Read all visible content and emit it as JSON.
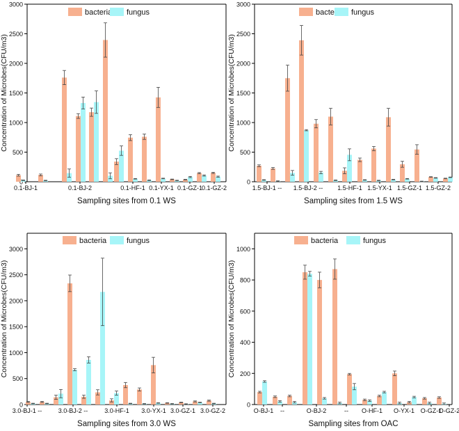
{
  "colors": {
    "bacteria": "#F7B08F",
    "fungus": "#A7F5F8",
    "error_bar": "#444444",
    "axis": "#000000"
  },
  "chart_data": [
    {
      "type": "bar",
      "ylabel": "Concentration of Microbes(CFU/m3)",
      "xlabel": "Sampling sites from 0.1 WS",
      "ylim": [
        0,
        3000
      ],
      "yticks": [
        "0",
        "500",
        "1000",
        "1500",
        "2000",
        "2500",
        "3000"
      ],
      "legend": {
        "position": "top",
        "entries": [
          "bacteria",
          "fungus"
        ]
      },
      "xticklabels": [
        "0.1-BJ-1",
        "0.1-BJ-2",
        "0.1-HF-1",
        "0.1-YX-1",
        "0.1-GZ-1",
        "0.1-GZ-2"
      ],
      "series": [
        {
          "name": "bacteria",
          "values": [
            110,
            115,
            1760,
            1110,
            1175,
            2395,
            340,
            745,
            760,
            1425,
            40,
            35,
            145,
            150
          ],
          "errors": [
            15,
            15,
            120,
            40,
            70,
            290,
            50,
            50,
            45,
            170,
            5,
            5,
            10,
            10
          ]
        },
        {
          "name": "fungus",
          "values": [
            25,
            20,
            145,
            1330,
            1345,
            100,
            525,
            50,
            25,
            55,
            20,
            80,
            105,
            85
          ],
          "errors": [
            5,
            5,
            70,
            100,
            190,
            50,
            80,
            5,
            5,
            5,
            5,
            10,
            10,
            10
          ]
        }
      ]
    },
    {
      "type": "bar",
      "ylabel": "Concentration of Microbes(CFU/m3)",
      "xlabel": "Sampling sites from 1.5 WS",
      "ylim": [
        0,
        3000
      ],
      "yticks": [
        "0",
        "500",
        "1000",
        "1500",
        "2000",
        "2500",
        "3000"
      ],
      "legend": {
        "position": "top",
        "entries": [
          "bacteria",
          "fungus"
        ]
      },
      "xticklabels": [
        "1.5-BJ-1 --",
        "1.5-BJ-2 --",
        "1.5-HF-1",
        "1.5-YX-1",
        "1.5-GZ-1",
        "1.5-GZ-2"
      ],
      "series": [
        {
          "name": "bacteria",
          "values": [
            270,
            225,
            1750,
            2390,
            980,
            1100,
            185,
            370,
            560,
            1090,
            295,
            545,
            80,
            55
          ],
          "errors": [
            15,
            15,
            220,
            250,
            70,
            140,
            50,
            30,
            35,
            150,
            50,
            80,
            5,
            5
          ]
        },
        {
          "name": "fungus",
          "values": [
            30,
            10,
            150,
            870,
            155,
            25,
            455,
            30,
            20,
            35,
            50,
            5,
            65,
            75
          ],
          "errors": [
            5,
            5,
            40,
            10,
            20,
            5,
            100,
            5,
            5,
            5,
            5,
            5,
            5,
            5
          ]
        }
      ]
    },
    {
      "type": "bar",
      "ylabel": "Concentration of Microbes(CFU/m3)",
      "xlabel": "Sampling sites from 3.0 WS",
      "ylim": [
        0,
        3300
      ],
      "yticks": [
        "0",
        "500",
        "1000",
        "1500",
        "2000",
        "2500",
        "3000"
      ],
      "legend": {
        "position": "top",
        "entries": [
          "bacteria",
          "fungus"
        ]
      },
      "xticklabels": [
        "3.0-BJ-1 --",
        "3.0-BJ-2 --",
        "3.0-HF-1",
        "3.0-YX-1",
        "3.0-GZ-1",
        "3.0-GZ-2"
      ],
      "series": [
        {
          "name": "bacteria",
          "values": [
            50,
            50,
            140,
            2335,
            150,
            235,
            80,
            375,
            290,
            760,
            30,
            40,
            60,
            75
          ],
          "errors": [
            10,
            10,
            40,
            160,
            30,
            50,
            30,
            50,
            30,
            150,
            5,
            5,
            10,
            10
          ]
        },
        {
          "name": "fungus",
          "values": [
            20,
            20,
            210,
            670,
            860,
            2170,
            220,
            20,
            15,
            30,
            15,
            10,
            40,
            20
          ],
          "errors": [
            5,
            5,
            80,
            20,
            60,
            650,
            40,
            5,
            5,
            5,
            5,
            5,
            5,
            5
          ]
        }
      ]
    },
    {
      "type": "bar",
      "ylabel": "Concentration of Microbes(CFU/m3)",
      "xlabel": "Sampling sites from OAC",
      "ylim": [
        0,
        1100
      ],
      "yticks": [
        "0",
        "200",
        "400",
        "600",
        "800",
        "1000"
      ],
      "legend": {
        "position": "top",
        "entries": [
          "bacteria",
          "fungus"
        ]
      },
      "xticklabels": [
        "O-BJ-1",
        "--",
        "O-BJ-2",
        "--",
        "O-HF-1",
        "O-YX-1",
        "O-GZ-1",
        "O-GZ-2"
      ],
      "series": [
        {
          "name": "bacteria",
          "values": [
            80,
            50,
            55,
            850,
            800,
            870,
            195,
            30,
            55,
            200,
            15,
            40,
            45
          ],
          "errors": [
            5,
            5,
            5,
            45,
            50,
            65,
            5,
            5,
            5,
            15,
            5,
            5,
            5
          ]
        },
        {
          "name": "fungus",
          "values": [
            148,
            20,
            15,
            840,
            40,
            10,
            115,
            25,
            80,
            10,
            48,
            10,
            5
          ],
          "errors": [
            5,
            5,
            5,
            15,
            5,
            5,
            20,
            5,
            5,
            5,
            5,
            5,
            5
          ]
        }
      ]
    }
  ]
}
